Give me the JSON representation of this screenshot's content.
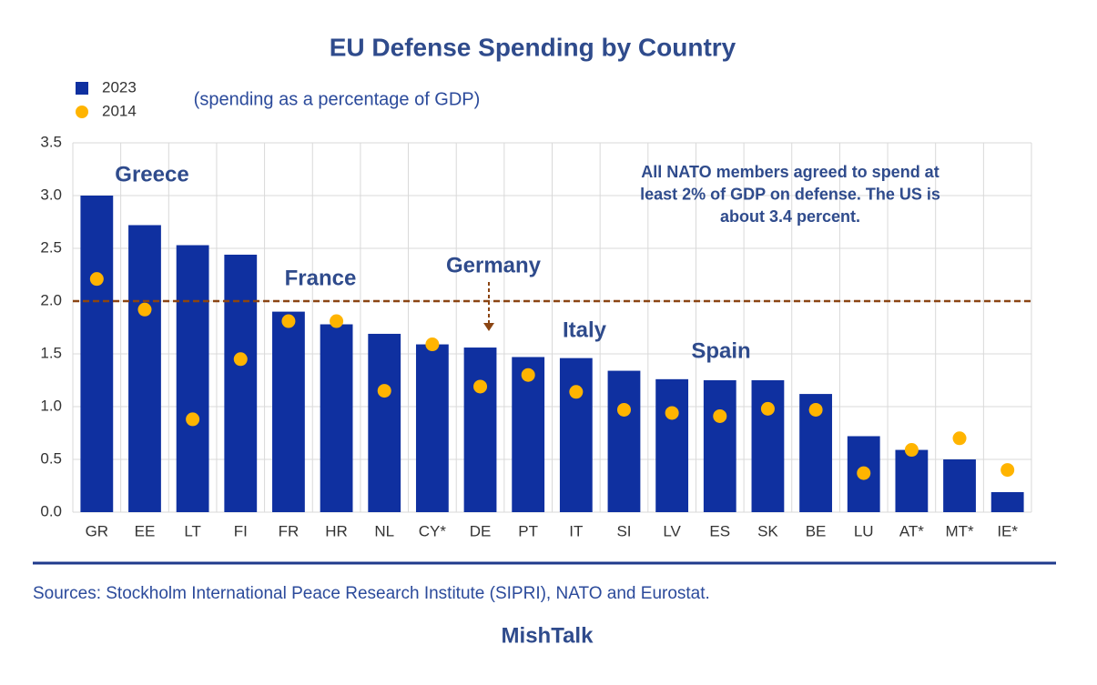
{
  "chart_data": {
    "type": "bar",
    "title": "EU Defense Spending by Country",
    "subtitle": "(spending as a percentage of GDP)",
    "categories": [
      "GR",
      "EE",
      "LT",
      "FI",
      "FR",
      "HR",
      "NL",
      "CY*",
      "DE",
      "PT",
      "IT",
      "SI",
      "LV",
      "ES",
      "SK",
      "BE",
      "LU",
      "AT*",
      "MT*",
      "IE*"
    ],
    "series": [
      {
        "name": "2023",
        "color": "#0f30a0",
        "mark": "bar",
        "values": [
          3.0,
          2.72,
          2.53,
          2.44,
          1.9,
          1.78,
          1.69,
          1.59,
          1.56,
          1.47,
          1.46,
          1.34,
          1.26,
          1.25,
          1.25,
          1.12,
          0.72,
          0.59,
          0.5,
          0.19
        ]
      },
      {
        "name": "2014",
        "color": "#ffb400",
        "mark": "dot",
        "values": [
          2.21,
          1.92,
          0.88,
          1.45,
          1.81,
          1.81,
          1.15,
          1.59,
          1.19,
          1.3,
          1.14,
          0.97,
          0.94,
          0.91,
          0.98,
          0.97,
          0.37,
          0.59,
          0.7,
          0.4
        ]
      }
    ],
    "ylim": [
      0,
      3.5
    ],
    "yticks": [
      {
        "value": 0,
        "label": "0.0"
      },
      {
        "value": 0.5,
        "label": "0.5"
      },
      {
        "value": 1,
        "label": "1.0"
      },
      {
        "value": 1.5,
        "label": "1.5"
      },
      {
        "value": 2,
        "label": "2.0"
      },
      {
        "value": 2.5,
        "label": "2.5"
      },
      {
        "value": 3,
        "label": "3.0"
      },
      {
        "value": 3.5,
        "label": "3.5"
      }
    ],
    "grid": true,
    "reference_line": {
      "value": 2,
      "color": "#8b4513"
    },
    "annotations": [
      "Greece",
      "France",
      "Germany",
      "Italy",
      "Spain"
    ],
    "note": [
      "All NATO members agreed to spend at",
      "least 2% of GDP on defense. The US is",
      "about 3.4 percent."
    ],
    "source": "Sources: Stockholm International Peace Research Institute (SIPRI), NATO and Eurostat.",
    "footer": "MishTalk"
  }
}
